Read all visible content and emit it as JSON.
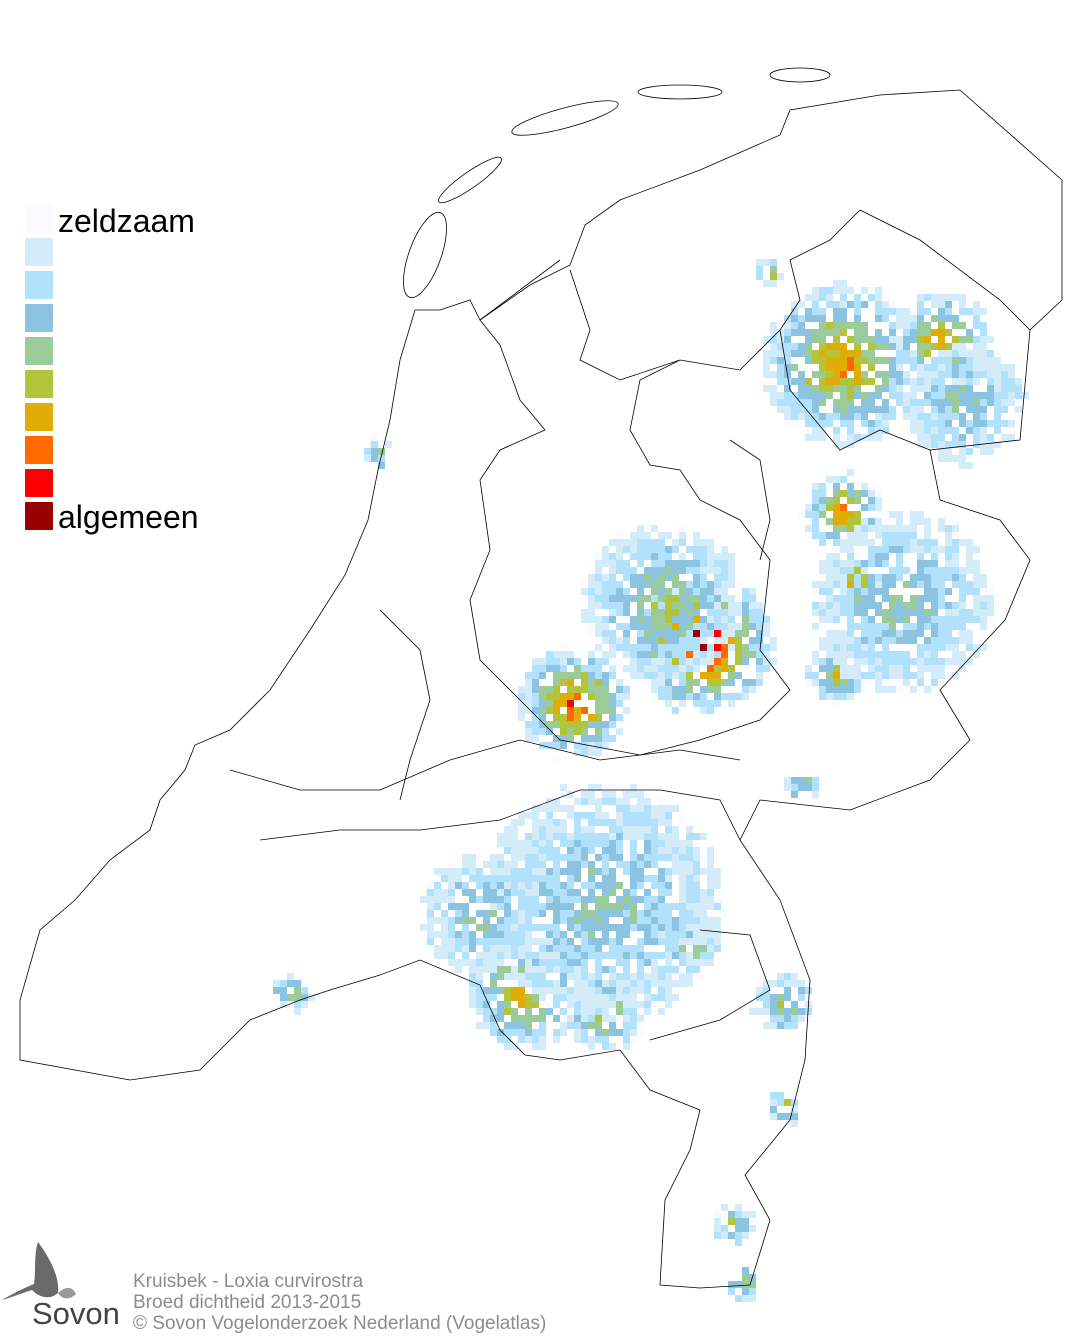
{
  "legend": {
    "top_label": "zeldzaam",
    "bottom_label": "algemeen",
    "colors": [
      "#fbfbff",
      "#d4ebfa",
      "#b2e2fb",
      "#8bc3e0",
      "#9acb98",
      "#b1c43a",
      "#e0ad08",
      "#ff6a00",
      "#ff0000",
      "#990000"
    ]
  },
  "footer": {
    "species": "Kruisbek - Loxia curvirostra",
    "subtitle": "Broed dichtheid 2013-2015",
    "copyright": "© Sovon Vogelonderzoek Nederland (Vogelatlas)"
  },
  "logo": {
    "text": "Sovon"
  }
}
